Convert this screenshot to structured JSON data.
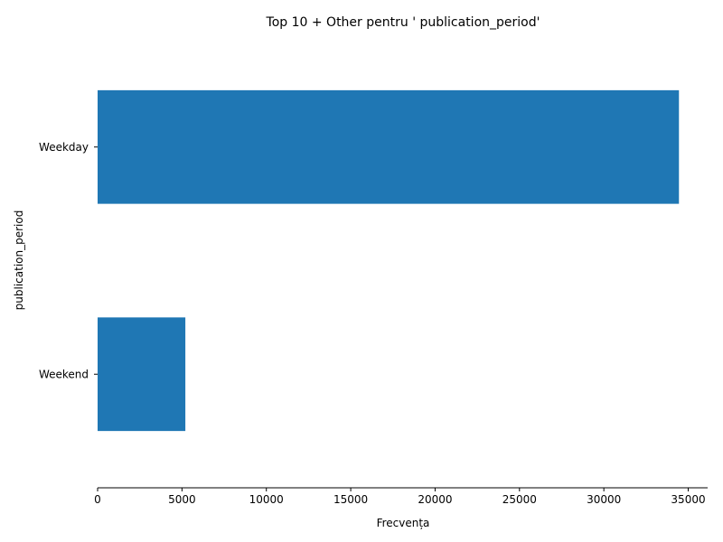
{
  "chart_data": {
    "type": "bar",
    "orientation": "horizontal",
    "title": "Top 10 + Other pentru ' publication_period'",
    "xlabel": "Frecvența",
    "ylabel": "publication_period",
    "categories": [
      "Weekday",
      "Weekend"
    ],
    "values": [
      34450,
      5200
    ],
    "xlim": [
      0,
      36150
    ],
    "xticks": [
      0,
      5000,
      10000,
      15000,
      20000,
      25000,
      30000,
      35000
    ],
    "grid": false,
    "legend": "none",
    "bar_color": "#1f77b4"
  }
}
